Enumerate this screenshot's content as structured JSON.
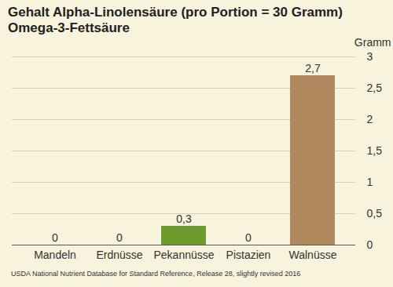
{
  "chart_data": {
    "type": "bar",
    "title": "Gehalt Alpha-Linolensäure (pro Portion = 30 Gramm)",
    "subtitle": "Omega-3-Fettsäure",
    "y_label": "Gramm",
    "caption": "USDA National Nutrient Database for Standard Reference, Release 28, slightly revised 2016",
    "categories": [
      "Mandeln",
      "Erdnüsse",
      "Pekannüsse",
      "Pistazien",
      "Walnüsse"
    ],
    "values": [
      0,
      0,
      0.3,
      0,
      2.7
    ],
    "value_labels": [
      "0",
      "0",
      "0,3",
      "0",
      "2,7"
    ],
    "colors": [
      "#6b9b2c",
      "#6b9b2c",
      "#6b9b2c",
      "#6b9b2c",
      "#b08a5e"
    ],
    "ylim": [
      0,
      3
    ],
    "yticks": [
      0,
      {
        "value": 0.5,
        "label": "0,5"
      },
      1,
      {
        "value": 1.5,
        "label": "1,5"
      },
      2,
      {
        "value": 2.5,
        "label": "2,5"
      },
      3
    ],
    "grid": true,
    "data_labels": true
  }
}
